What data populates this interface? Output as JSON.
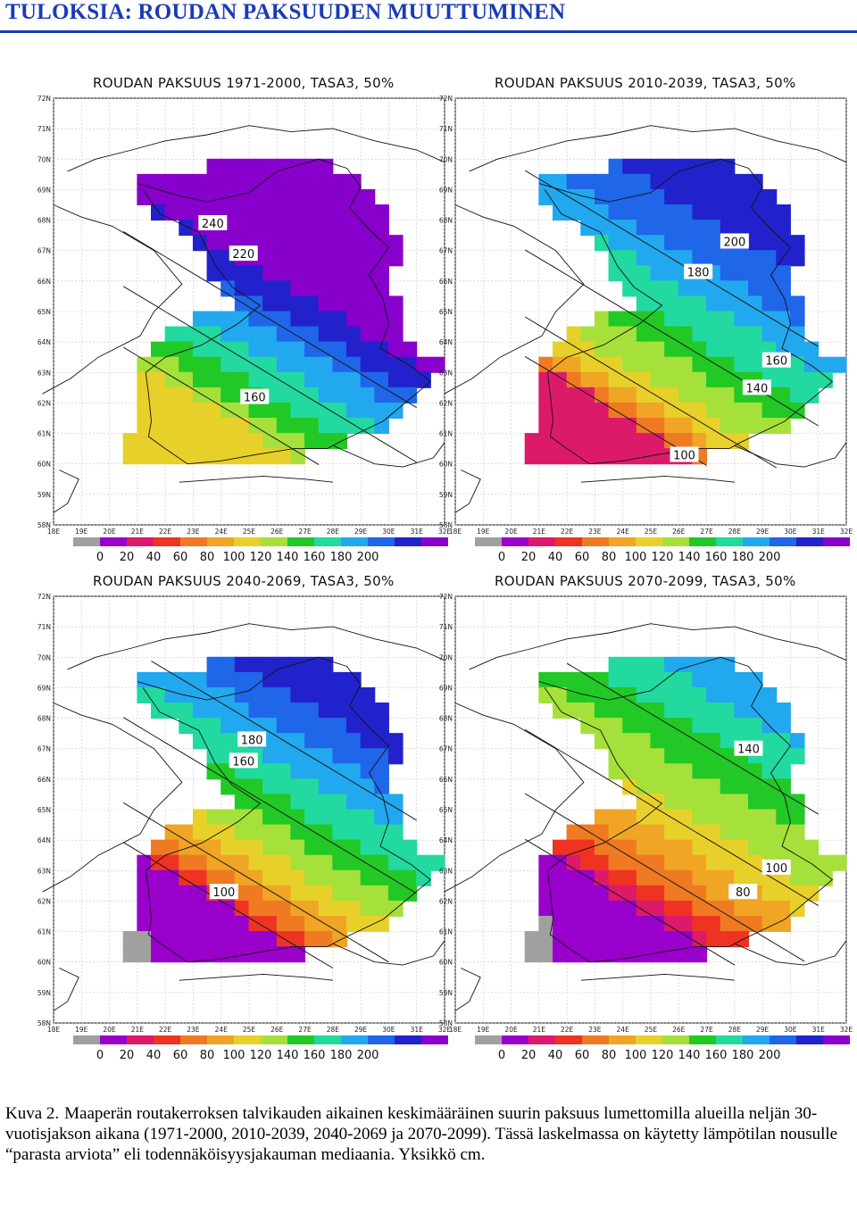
{
  "page": {
    "title": "TULOKSIA: ROUDAN PAKSUUDEN MUUTTUMINEN"
  },
  "panels": [
    {
      "title": "ROUDAN PAKSUUS 1971-2000, TASA3, 50%",
      "contour_labels": [
        "240",
        "220",
        "160"
      ],
      "shading": "p1"
    },
    {
      "title": "ROUDAN PAKSUUS 2010-2039, TASA3, 50%",
      "contour_labels": [
        "200",
        "180",
        "160",
        "140",
        "100"
      ],
      "shading": "p2"
    },
    {
      "title": "ROUDAN PAKSUUS 2040-2069, TASA3, 50%",
      "contour_labels": [
        "180",
        "160",
        "100"
      ],
      "shading": "p3"
    },
    {
      "title": "ROUDAN PAKSUUS 2070-2099, TASA3, 50%",
      "contour_labels": [
        "140",
        "100",
        "80"
      ],
      "shading": "p4"
    }
  ],
  "axes": {
    "lat_labels": [
      "72N",
      "71N",
      "70N",
      "69N",
      "68N",
      "67N",
      "66N",
      "65N",
      "64N",
      "63N",
      "62N",
      "61N",
      "60N",
      "59N",
      "58N"
    ],
    "lon_labels": [
      "18E",
      "19E",
      "20E",
      "21E",
      "22E",
      "23E",
      "24E",
      "25E",
      "26E",
      "27E",
      "28E",
      "29E",
      "30E",
      "31E",
      "32E"
    ]
  },
  "legend": {
    "tick_labels": [
      "0",
      "20",
      "40",
      "60",
      "80",
      "100",
      "120",
      "140",
      "160",
      "180",
      "200"
    ],
    "colors": [
      "#a0a0a0",
      "#9900cc",
      "#dd1a6a",
      "#ee3322",
      "#f07a22",
      "#f0a525",
      "#e8d02a",
      "#a6e03a",
      "#22c825",
      "#22d9a0",
      "#22a8ee",
      "#1f66e8",
      "#2222cc",
      "#8800cc"
    ]
  },
  "caption": {
    "label": "Kuva 2.",
    "text": "Maaperän routakerroksen talvikauden aikainen keskimääräinen suurin paksuus lumettomilla alueilla neljän 30-vuotisjakson aikana (1971-2000, 2010-2039, 2040-2069 ja 2070-2099). Tässä laskelmassa on käytetty lämpötilan nousulle “parasta arviota” eli todennäköisyysjakauman mediaania. Yksikkö cm."
  }
}
